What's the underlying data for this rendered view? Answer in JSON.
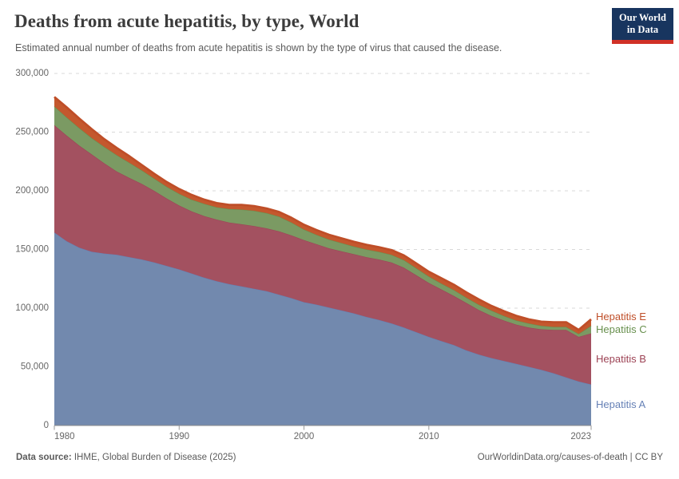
{
  "header": {
    "title": "Deaths from acute hepatitis, by type, World",
    "subtitle": "Estimated annual number of deaths from acute hepatitis is shown by the type of virus that caused the disease.",
    "logo": {
      "line1": "Our World",
      "line2": "in Data"
    }
  },
  "footer": {
    "source_label": "Data source:",
    "source_text": " IHME, Global Burden of Disease (2025)",
    "credit": "OurWorldinData.org/causes-of-death | CC BY"
  },
  "chart_data": {
    "type": "area",
    "stacked": true,
    "title": "Deaths from acute hepatitis, by type, World",
    "xlabel": "",
    "ylabel": "",
    "ylim": [
      0,
      300000
    ],
    "grid": "horizontal-dashed",
    "legend_position": "right",
    "x": [
      1980,
      1981,
      1982,
      1983,
      1984,
      1985,
      1986,
      1987,
      1988,
      1989,
      1990,
      1991,
      1992,
      1993,
      1994,
      1995,
      1996,
      1997,
      1998,
      1999,
      2000,
      2001,
      2002,
      2003,
      2004,
      2005,
      2006,
      2007,
      2008,
      2009,
      2010,
      2011,
      2012,
      2013,
      2014,
      2015,
      2016,
      2017,
      2018,
      2019,
      2020,
      2021,
      2022,
      2023
    ],
    "series": [
      {
        "name": "Hepatitis A",
        "color": "#7289ae",
        "label_color": "#6681b6",
        "values": [
          164500,
          157000,
          151500,
          148000,
          146500,
          145500,
          143500,
          141500,
          139000,
          136000,
          133000,
          129500,
          126000,
          123000,
          120500,
          118500,
          116500,
          114500,
          111500,
          108500,
          105000,
          103000,
          100500,
          98000,
          95500,
          92500,
          90000,
          87000,
          83500,
          79500,
          75500,
          72000,
          68500,
          64000,
          60500,
          57500,
          55000,
          52500,
          50000,
          47500,
          44500,
          41000,
          37500,
          35000
        ]
      },
      {
        "name": "Hepatitis B",
        "color": "#a35160",
        "label_color": "#9d4355",
        "values": [
          91500,
          90000,
          87000,
          83000,
          77000,
          71000,
          67500,
          64500,
          61000,
          57500,
          54500,
          53000,
          52500,
          52500,
          52500,
          53000,
          53500,
          53500,
          54000,
          53500,
          53000,
          51500,
          50500,
          50500,
          50500,
          51000,
          51500,
          52000,
          51000,
          48500,
          46000,
          44000,
          42000,
          40500,
          38000,
          36000,
          34500,
          33500,
          33500,
          34500,
          37000,
          40500,
          38000,
          43500
        ]
      },
      {
        "name": "Hepatitis C",
        "color": "#7b9a63",
        "label_color": "#68904e",
        "values": [
          16000,
          15500,
          15000,
          14000,
          14000,
          14000,
          13000,
          11500,
          10500,
          10000,
          10000,
          10000,
          10500,
          10500,
          11500,
          12500,
          13000,
          13000,
          12500,
          11000,
          9000,
          8000,
          7500,
          7000,
          6500,
          6500,
          6500,
          6500,
          6500,
          6000,
          5500,
          5000,
          5000,
          4500,
          4500,
          4500,
          4000,
          3500,
          3500,
          3000,
          2500,
          2500,
          2500,
          6500
        ]
      },
      {
        "name": "Hepatitis E",
        "color": "#c4582e",
        "label_color": "#bf4e28",
        "values": [
          8000,
          8500,
          8000,
          7500,
          6500,
          6000,
          5500,
          4500,
          4000,
          4000,
          4000,
          4000,
          3500,
          3500,
          3500,
          4000,
          4000,
          4000,
          4000,
          4000,
          4000,
          4000,
          4000,
          4000,
          4000,
          4000,
          4000,
          4000,
          4000,
          4000,
          4000,
          4500,
          4500,
          4500,
          4500,
          4000,
          4000,
          4000,
          3500,
          3500,
          4000,
          4000,
          3500,
          5500
        ]
      }
    ],
    "y_ticks": [
      {
        "value": 0,
        "label": "0"
      },
      {
        "value": 50000,
        "label": "50,000"
      },
      {
        "value": 100000,
        "label": "100,000"
      },
      {
        "value": 150000,
        "label": "150,000"
      },
      {
        "value": 200000,
        "label": "200,000"
      },
      {
        "value": 250000,
        "label": "250,000"
      },
      {
        "value": 300000,
        "label": "300,000"
      }
    ],
    "x_ticks": [
      {
        "value": 1980,
        "label": "1980"
      },
      {
        "value": 1990,
        "label": "1990"
      },
      {
        "value": 2000,
        "label": "2000"
      },
      {
        "value": 2010,
        "label": "2010"
      },
      {
        "value": 2023,
        "label": "2023"
      }
    ]
  }
}
